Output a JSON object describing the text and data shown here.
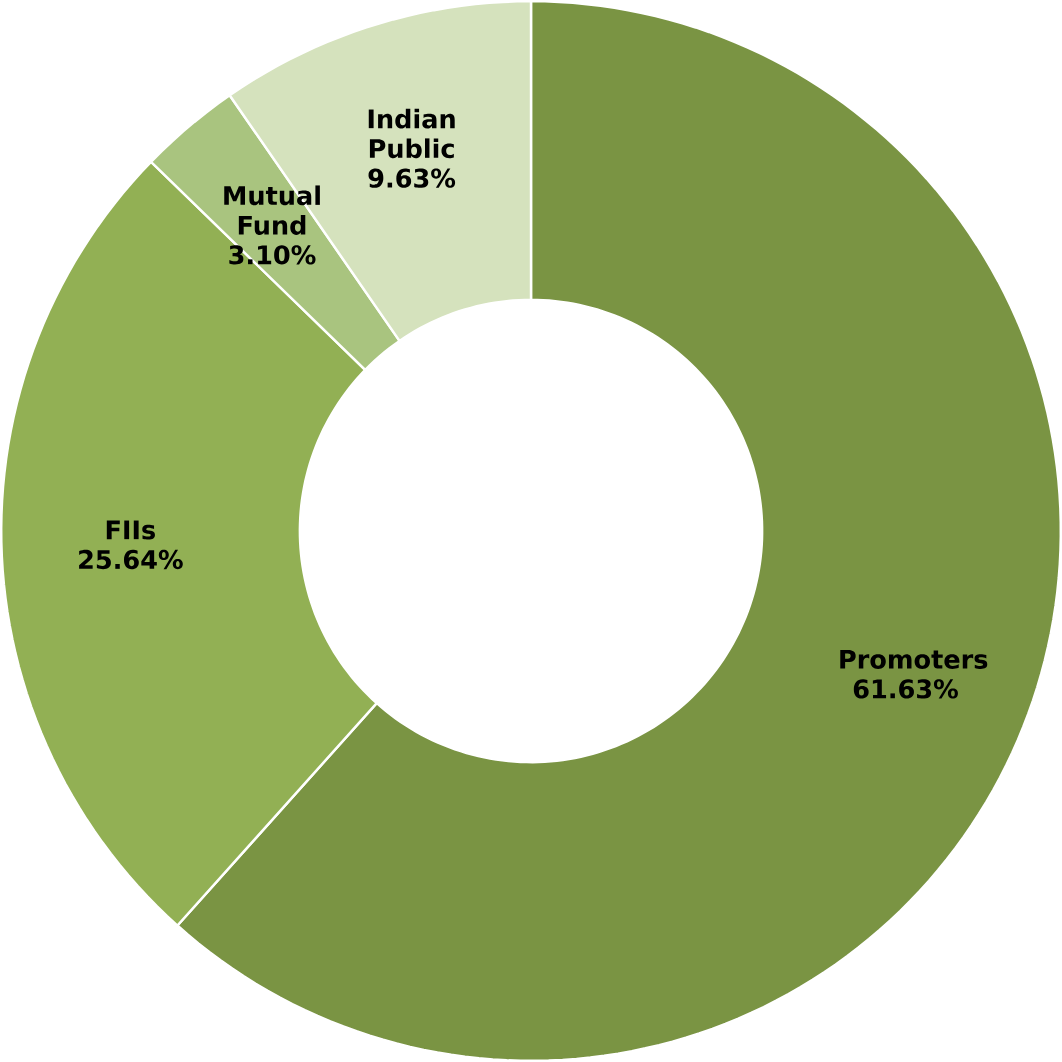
{
  "chart_data": {
    "type": "donut",
    "categories": [
      "Promoters",
      "FIIs",
      "Mutual Fund",
      "Indian Public"
    ],
    "values": [
      61.63,
      25.64,
      3.1,
      9.63
    ],
    "value_labels": [
      "61.63%",
      "25.64%",
      "3.10%",
      "9.63%"
    ],
    "colors": [
      "#7a9443",
      "#92b054",
      "#a9c47f",
      "#d5e2bd"
    ]
  }
}
